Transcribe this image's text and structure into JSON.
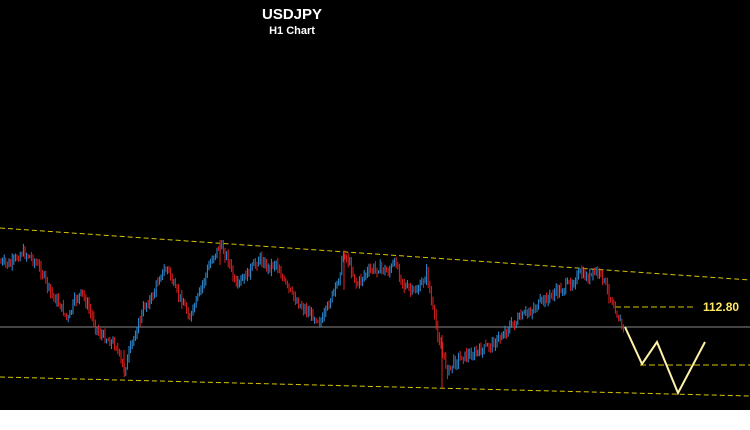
{
  "chart_data": {
    "type": "candlestick",
    "title": "USDJPY",
    "subtitle": "H1 Chart",
    "annotations": [
      {
        "kind": "level-label",
        "value": "112.80"
      }
    ],
    "colors": {
      "background": "#000000",
      "bullish": "#2f8fd8",
      "bearish": "#e02020",
      "channel": "#d6c400",
      "level_line": "#d6c400",
      "current_price_line": "#8a8a8a",
      "projection": "#fff1a8",
      "label": "#ffe766"
    },
    "grid": false,
    "legend": "none"
  }
}
